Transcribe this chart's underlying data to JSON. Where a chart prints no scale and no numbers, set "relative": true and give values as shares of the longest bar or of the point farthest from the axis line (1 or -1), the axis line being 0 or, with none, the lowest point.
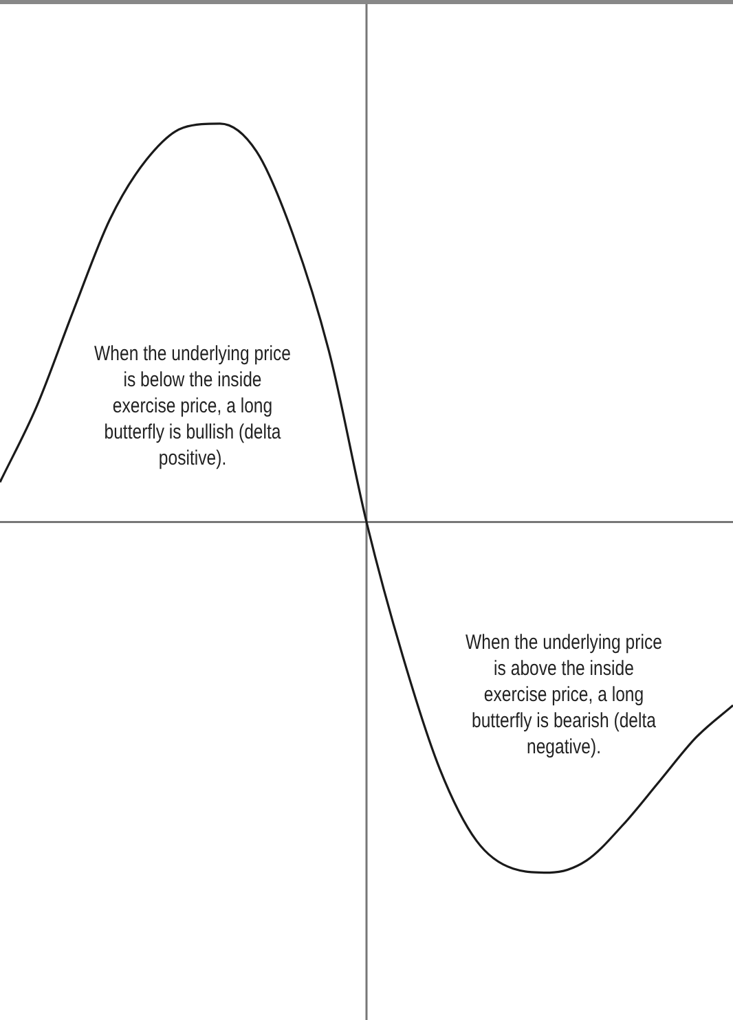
{
  "chart_data": {
    "type": "line",
    "relative": true,
    "color": "#1a1a1a",
    "marker": "none",
    "line_style": "solid",
    "categories": [
      null,
      null,
      null,
      null,
      null,
      null,
      null,
      null,
      null,
      null,
      null,
      null,
      null,
      null,
      null,
      null,
      null,
      null,
      null,
      null,
      null
    ],
    "values": [
      0.1,
      0.29,
      0.53,
      0.76,
      0.91,
      0.99,
      1.0,
      0.93,
      0.72,
      0.42,
      0.0,
      -0.34,
      -0.62,
      -0.8,
      -0.87,
      -0.88,
      -0.85,
      -0.76,
      -0.65,
      -0.54,
      -0.46
    ],
    "annotations": [
      "When the underlying price is below the inside exercise price, a long butterfly is bullish (delta positive).",
      "When the underlying price is above the inside exercise price, a long butterfly is bearish (delta negative)."
    ]
  }
}
